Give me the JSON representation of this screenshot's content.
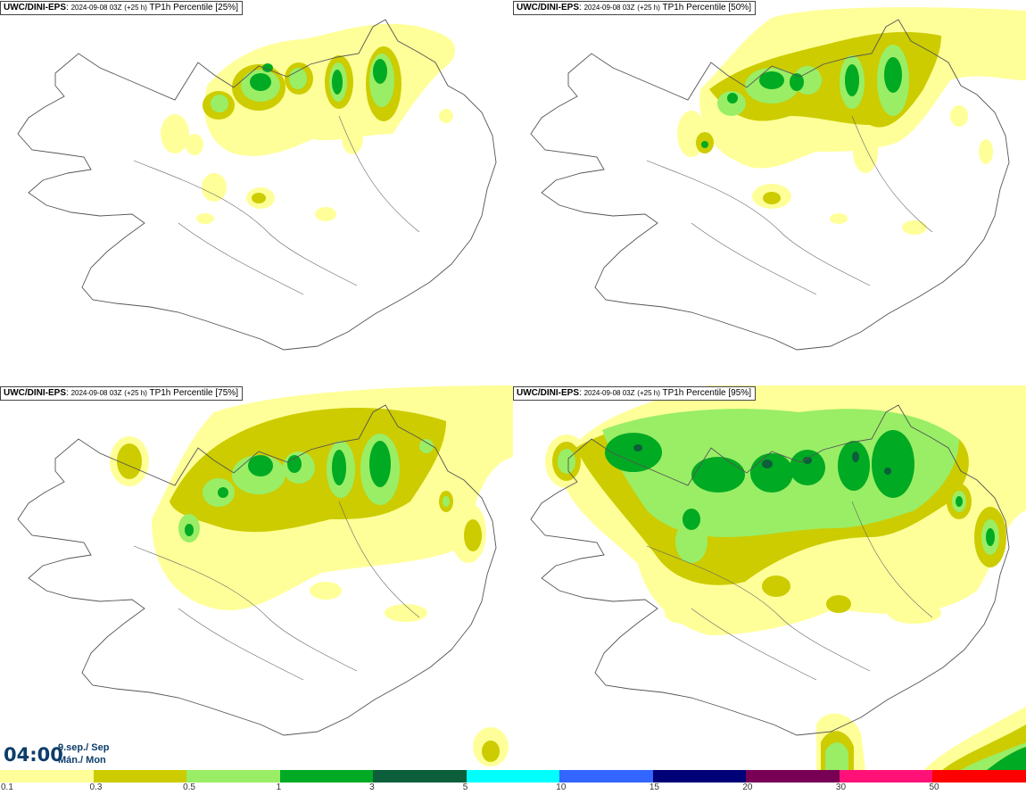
{
  "panels": [
    {
      "model": "UWC/DINI-EPS",
      "run": "2024-09-08 03Z",
      "lead": "(+25 h)",
      "param": "TP1h Percentile [25%]"
    },
    {
      "model": "UWC/DINI-EPS",
      "run": "2024-09-08 03Z",
      "lead": "(+25 h)",
      "param": "TP1h Percentile [50%]"
    },
    {
      "model": "UWC/DINI-EPS",
      "run": "2024-09-08 03Z",
      "lead": "(+25 h)",
      "param": "TP1h Percentile [75%]"
    },
    {
      "model": "UWC/DINI-EPS",
      "run": "2024-09-08 03Z",
      "lead": "(+25 h)",
      "param": "TP1h Percentile [95%]"
    }
  ],
  "valid_time": {
    "hour": "04:00",
    "date_line1": "9.sep./ Sep",
    "date_line2": "Mán./ Mon"
  },
  "legend": {
    "colors": [
      "#ffff99",
      "#cccc00",
      "#99ee66",
      "#00aa22",
      "#0d5e3a",
      "#00ffff",
      "#3366ff",
      "#000077",
      "#770055",
      "#ff1177",
      "#ff0000"
    ],
    "ticks": [
      "0.1",
      "0.3",
      "0.5",
      "1",
      "3",
      "5",
      "10",
      "15",
      "20",
      "30",
      "50"
    ]
  }
}
